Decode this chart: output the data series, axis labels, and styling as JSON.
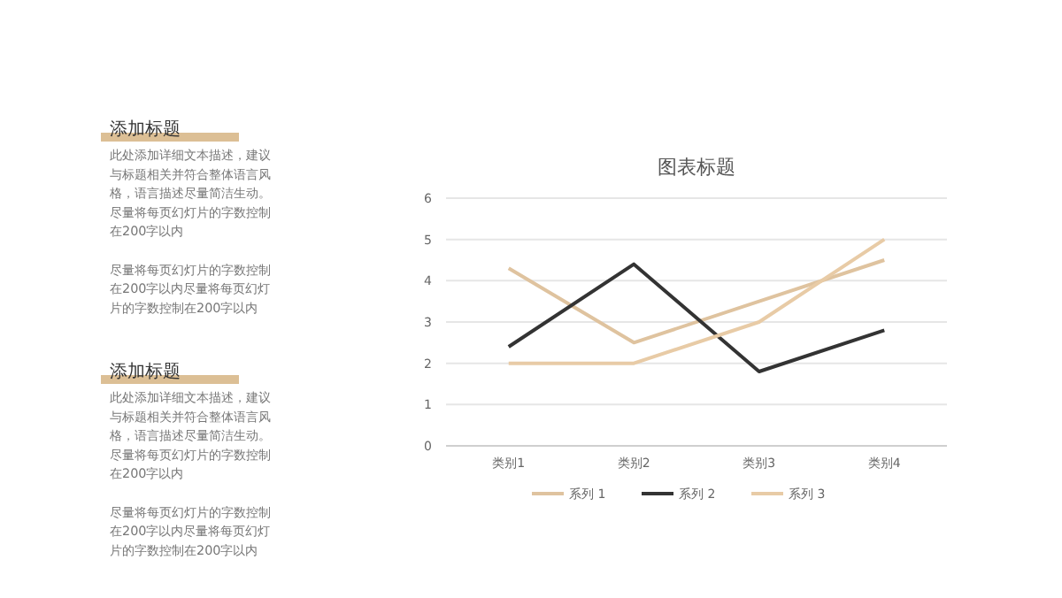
{
  "chart_data": {
    "type": "line",
    "title": "图表标题",
    "categories": [
      "类别1",
      "类别2",
      "类别3",
      "类别4"
    ],
    "series": [
      {
        "name": "系列 1",
        "color": "#dfc39f",
        "values": [
          4.3,
          2.5,
          3.5,
          4.5
        ]
      },
      {
        "name": "系列 2",
        "color": "#333333",
        "values": [
          2.4,
          4.4,
          1.8,
          2.8
        ]
      },
      {
        "name": "系列 3",
        "color": "#e8cba6",
        "values": [
          2,
          2,
          3,
          5
        ]
      }
    ],
    "ylim": [
      0,
      6
    ],
    "yticks": [
      0,
      1,
      2,
      3,
      4,
      5,
      6
    ],
    "grid": "y",
    "legend": "bottom",
    "marker": "none",
    "line_style": "solid",
    "annotations": [
      "添加标题",
      "此处添加详细文本描述，建议与标题相关并符合整体语言风格，语言描述尽量简洁生动。尽量将每页幻灯片的字数控制在200字以内",
      "尽量将每页幻灯片的字数控制在200字以内尽量将每页幻灯片的字数控制在200字以内",
      "添加标题",
      "此处添加详细文本描述，建议与标题相关并符合整体语言风格，语言描述尽量简洁生动。尽量将每页幻灯片的字数控制在200字以内",
      "尽量将每页幻灯片的字数控制在200字以内尽量将每页幻灯片的字数控制在200字以内"
    ]
  }
}
